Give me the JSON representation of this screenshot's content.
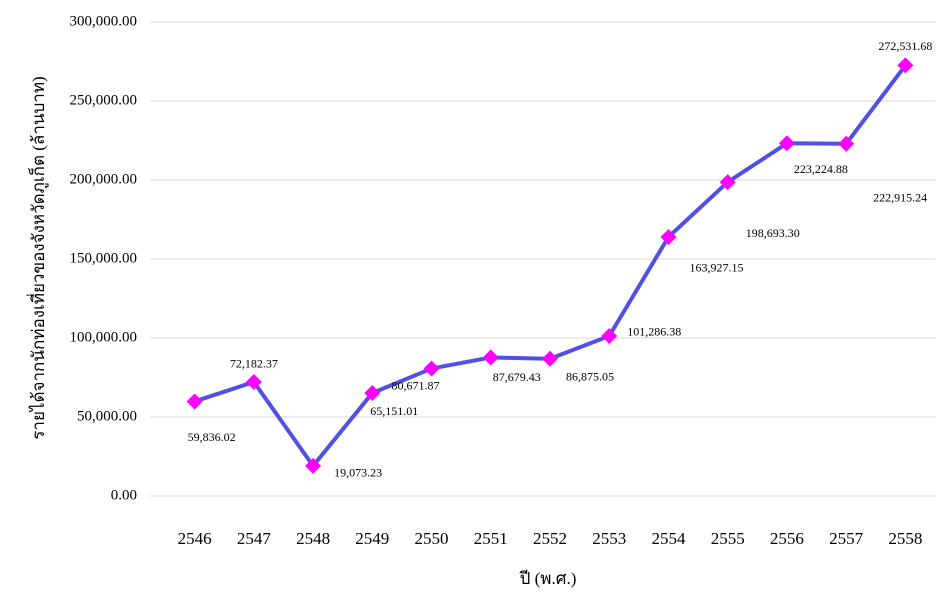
{
  "chart_data": {
    "type": "line",
    "y_label": "รายได้จากนักท่องเที่ยวของจังหวัดภูเก็ต  (ล้านบาท)",
    "x_label": "ปี (พ.ศ.)",
    "categories": [
      "2546",
      "2547",
      "2548",
      "2549",
      "2550",
      "2551",
      "2552",
      "2553",
      "2554",
      "2555",
      "2556",
      "2557",
      "2558"
    ],
    "series": [
      {
        "color": "#5050e6",
        "marker_color": "#ff00ff",
        "values": [
          59836.02,
          72182.37,
          19073.23,
          65151.01,
          80671.87,
          87679.43,
          86875.05,
          101286.38,
          163927.15,
          198693.3,
          223224.88,
          222915.24,
          272531.68
        ],
        "value_labels": [
          "59,836.02",
          "72,182.37",
          "19,073.23",
          "65,151.01",
          "80,671.87",
          "87,679.43",
          "86,875.05",
          "101,286.38",
          "163,927.15",
          "198,693.30",
          "223,224.88",
          "222,915.24",
          "272,531.68"
        ]
      }
    ],
    "ylim": [
      0,
      300000
    ],
    "yticks": [
      {
        "value": 0,
        "label": "0.00"
      },
      {
        "value": 50000,
        "label": "50,000.00"
      },
      {
        "value": 100000,
        "label": "100,000.00"
      },
      {
        "value": 150000,
        "label": "150,000.00"
      },
      {
        "value": 200000,
        "label": "200,000.00"
      },
      {
        "value": 250000,
        "label": "250,000.00"
      },
      {
        "value": 300000,
        "label": "300,000.00"
      }
    ],
    "grid": true
  }
}
